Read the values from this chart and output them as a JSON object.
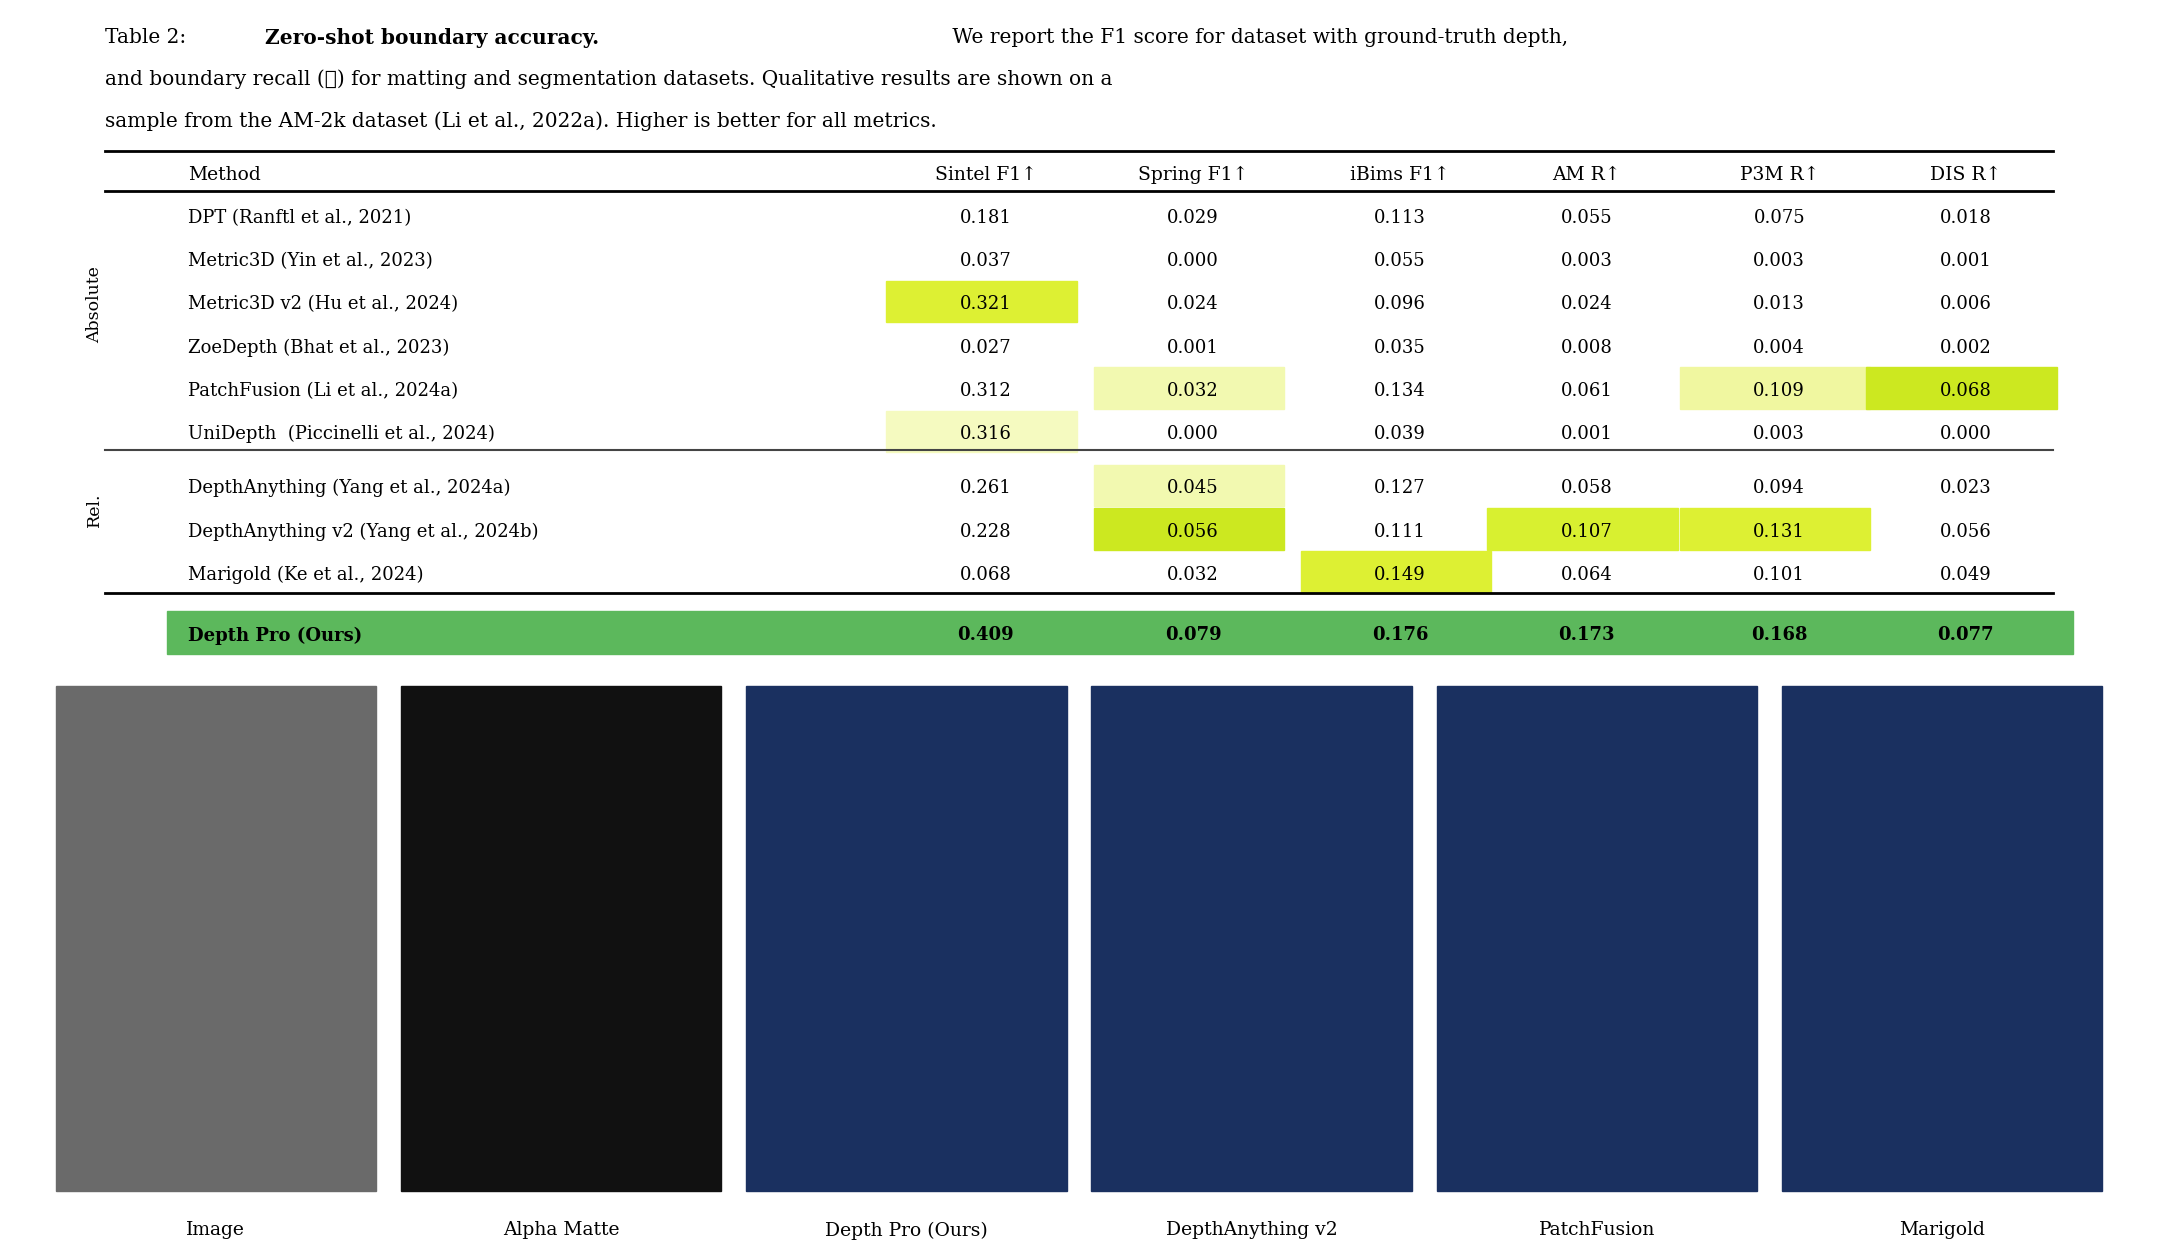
{
  "caption_line1_normal": "Table 2: ",
  "caption_line1_bold": "Zero-shot boundary accuracy.",
  "caption_line1_rest": " We report the F1 score for dataset with ground-truth depth,",
  "caption_line2": "and boundary recall (ℛ) for matting and segmentation datasets. Qualitative results are shown on a",
  "caption_line3": "sample from the AM-2k dataset (Li et al., 2022a). Higher is better for all metrics.",
  "col_headers": [
    "Method",
    "Sintel F1↑",
    "Spring F1↑",
    "iBims F1↑",
    "AM R↑",
    "P3M R↑",
    "DIS R↑"
  ],
  "section_absolute": "Absolute",
  "section_rel": "Rel.",
  "rows_absolute": [
    {
      "method": "DPT (Ranftl et al., 2021)",
      "values": [
        "0.181",
        "0.029",
        "0.113",
        "0.055",
        "0.075",
        "0.018"
      ],
      "highlights": [
        null,
        null,
        null,
        null,
        null,
        null
      ]
    },
    {
      "method": "Metric3D (Yin et al., 2023)",
      "values": [
        "0.037",
        "0.000",
        "0.055",
        "0.003",
        "0.003",
        "0.001"
      ],
      "highlights": [
        null,
        null,
        null,
        null,
        null,
        null
      ]
    },
    {
      "method": "Metric3D v2 (Hu et al., 2024)",
      "values": [
        "0.321",
        "0.024",
        "0.096",
        "0.024",
        "0.013",
        "0.006"
      ],
      "highlights": [
        "#ddf033",
        null,
        null,
        null,
        null,
        null
      ]
    },
    {
      "method": "ZoeDepth (Bhat et al., 2023)",
      "values": [
        "0.027",
        "0.001",
        "0.035",
        "0.008",
        "0.004",
        "0.002"
      ],
      "highlights": [
        null,
        null,
        null,
        null,
        null,
        null
      ]
    },
    {
      "method": "PatchFusion (Li et al., 2024a)",
      "values": [
        "0.312",
        "0.032",
        "0.134",
        "0.061",
        "0.109",
        "0.068"
      ],
      "highlights": [
        null,
        "#f2f9b0",
        null,
        null,
        "#f0f7a0",
        "#cce820"
      ]
    },
    {
      "method": "UniDepth  (Piccinelli et al., 2024)",
      "values": [
        "0.316",
        "0.000",
        "0.039",
        "0.001",
        "0.003",
        "0.000"
      ],
      "highlights": [
        "#f5fac0",
        null,
        null,
        null,
        null,
        null
      ]
    }
  ],
  "rows_rel": [
    {
      "method": "DepthAnything (Yang et al., 2024a)",
      "values": [
        "0.261",
        "0.045",
        "0.127",
        "0.058",
        "0.094",
        "0.023"
      ],
      "highlights": [
        null,
        "#f2f9b0",
        null,
        null,
        null,
        null
      ]
    },
    {
      "method": "DepthAnything v2 (Yang et al., 2024b)",
      "values": [
        "0.228",
        "0.056",
        "0.111",
        "0.107",
        "0.131",
        "0.056"
      ],
      "highlights": [
        null,
        "#cce820",
        null,
        "#d8f030",
        "#ddf033",
        null
      ]
    },
    {
      "method": "Marigold (Ke et al., 2024)",
      "values": [
        "0.068",
        "0.032",
        "0.149",
        "0.064",
        "0.101",
        "0.049"
      ],
      "highlights": [
        null,
        null,
        "#ddf033",
        null,
        null,
        null
      ]
    }
  ],
  "row_ours": {
    "method": "Depth Pro (Ours)",
    "values": [
      "0.409",
      "0.079",
      "0.176",
      "0.173",
      "0.168",
      "0.077"
    ],
    "highlight_color": "#5cb85c"
  },
  "image_labels": [
    "Image",
    "Alpha Matte",
    "Depth Pro (Ours)",
    "DepthAnything v2",
    "PatchFusion",
    "Marigold"
  ],
  "bg_color": "#ffffff"
}
